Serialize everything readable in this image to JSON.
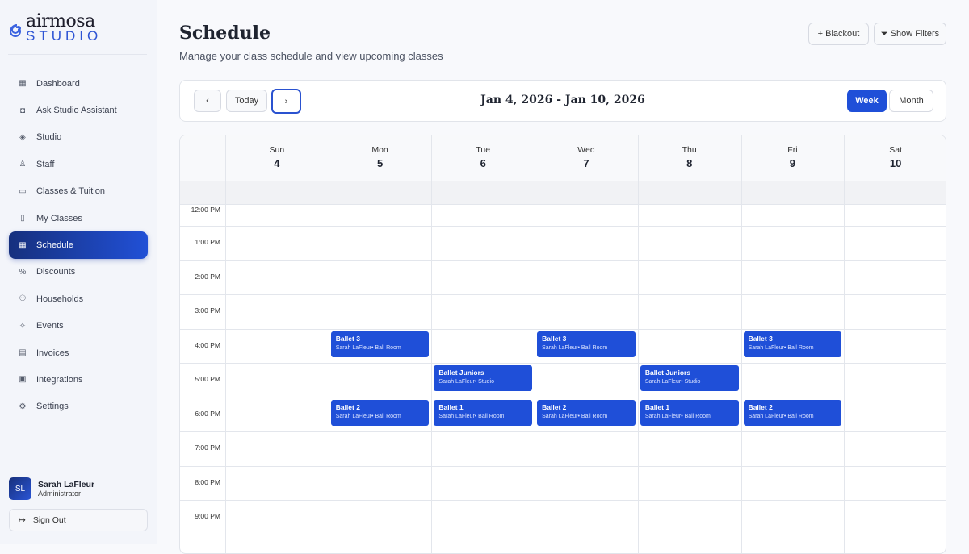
{
  "brand": {
    "name_top": "airmosa",
    "name_bottom": "STUDIO"
  },
  "sidebar": {
    "items": [
      {
        "label": "Dashboard",
        "icon": "dashboard-icon",
        "glyph": "▦"
      },
      {
        "label": "Ask Studio Assistant",
        "icon": "robot-icon",
        "glyph": "◘"
      },
      {
        "label": "Studio",
        "icon": "tag-icon",
        "glyph": "◈"
      },
      {
        "label": "Staff",
        "icon": "user-check-icon",
        "glyph": "♙"
      },
      {
        "label": "Classes & Tuition",
        "icon": "calendar-icon",
        "glyph": "▭"
      },
      {
        "label": "My Classes",
        "icon": "book-open-icon",
        "glyph": "▯"
      },
      {
        "label": "Schedule",
        "icon": "calendar-days-icon",
        "glyph": "▦",
        "active": true
      },
      {
        "label": "Discounts",
        "icon": "percent-icon",
        "glyph": "%"
      },
      {
        "label": "Households",
        "icon": "users-icon",
        "glyph": "⚇"
      },
      {
        "label": "Events",
        "icon": "party-icon",
        "glyph": "✧"
      },
      {
        "label": "Invoices",
        "icon": "file-icon",
        "glyph": "▤"
      },
      {
        "label": "Integrations",
        "icon": "folder-link-icon",
        "glyph": "▣"
      },
      {
        "label": "Settings",
        "icon": "gear-icon",
        "glyph": "⚙"
      }
    ]
  },
  "user": {
    "initials": "SL",
    "name": "Sarah LaFleur",
    "role": "Administrator"
  },
  "signout": "Sign Out",
  "header": {
    "title": "Schedule",
    "subtitle": "Manage your class schedule and view upcoming classes",
    "blackout": "Blackout",
    "filters": "Show Filters"
  },
  "toolbar": {
    "today": "Today",
    "range": "Jan 4, 2026 - Jan 10, 2026",
    "week": "Week",
    "month": "Month",
    "active_view": "Week"
  },
  "days": [
    {
      "name": "Sun",
      "num": "4"
    },
    {
      "name": "Mon",
      "num": "5"
    },
    {
      "name": "Tue",
      "num": "6"
    },
    {
      "name": "Wed",
      "num": "7"
    },
    {
      "name": "Thu",
      "num": "8"
    },
    {
      "name": "Fri",
      "num": "9"
    },
    {
      "name": "Sat",
      "num": "10"
    }
  ],
  "times": [
    "12:00 PM",
    "1:00 PM",
    "2:00 PM",
    "3:00 PM",
    "4:00 PM",
    "5:00 PM",
    "6:00 PM",
    "7:00 PM",
    "8:00 PM",
    "9:00 PM"
  ],
  "events": [
    {
      "day": 1,
      "time": "4:00 PM",
      "title": "Ballet 3",
      "detail": "Sarah LaFleur• Ball Room"
    },
    {
      "day": 3,
      "time": "4:00 PM",
      "title": "Ballet 3",
      "detail": "Sarah LaFleur• Ball Room"
    },
    {
      "day": 5,
      "time": "4:00 PM",
      "title": "Ballet 3",
      "detail": "Sarah LaFleur• Ball Room"
    },
    {
      "day": 2,
      "time": "5:00 PM",
      "title": "Ballet Juniors",
      "detail": "Sarah LaFleur• Studio"
    },
    {
      "day": 4,
      "time": "5:00 PM",
      "title": "Ballet Juniors",
      "detail": "Sarah LaFleur• Studio"
    },
    {
      "day": 1,
      "time": "6:00 PM",
      "title": "Ballet 2",
      "detail": "Sarah LaFleur• Ball Room"
    },
    {
      "day": 2,
      "time": "6:00 PM",
      "title": "Ballet 1",
      "detail": "Sarah LaFleur• Ball Room"
    },
    {
      "day": 3,
      "time": "6:00 PM",
      "title": "Ballet 2",
      "detail": "Sarah LaFleur• Ball Room"
    },
    {
      "day": 4,
      "time": "6:00 PM",
      "title": "Ballet 1",
      "detail": "Sarah LaFleur• Ball Room"
    },
    {
      "day": 5,
      "time": "6:00 PM",
      "title": "Ballet 2",
      "detail": "Sarah LaFleur• Ball Room"
    }
  ],
  "colors": {
    "accent": "#1f4fd8",
    "event": "#1f4fd8"
  }
}
